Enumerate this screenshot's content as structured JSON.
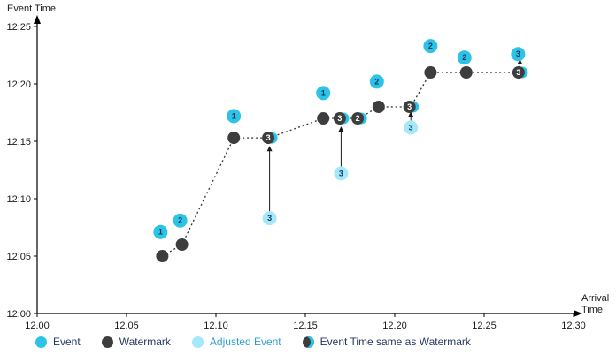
{
  "chart_data": {
    "type": "scatter",
    "ylabel": "Event Time",
    "xlabel": "Arrival Time",
    "xlabel_lines": [
      "Arrival",
      "Time"
    ],
    "xlim": [
      12.0,
      12.3
    ],
    "ylim": [
      12.0,
      12.25
    ],
    "x_ticks": [
      {
        "v": 12.0,
        "label": "12.00"
      },
      {
        "v": 12.05,
        "label": "12.05"
      },
      {
        "v": 12.1,
        "label": "12.10"
      },
      {
        "v": 12.15,
        "label": "12.15"
      },
      {
        "v": 12.2,
        "label": "12.20"
      },
      {
        "v": 12.25,
        "label": "12.25"
      },
      {
        "v": 12.3,
        "label": "12.30"
      }
    ],
    "y_ticks": [
      {
        "v": 12.0,
        "label": "12:00"
      },
      {
        "v": 12.05,
        "label": "12:05"
      },
      {
        "v": 12.1,
        "label": "12:10"
      },
      {
        "v": 12.15,
        "label": "12:15"
      },
      {
        "v": 12.2,
        "label": "12:20"
      },
      {
        "v": 12.25,
        "label": "12:25"
      }
    ],
    "watermark_line": [
      [
        12.07,
        12.05
      ],
      [
        12.081,
        12.06
      ],
      [
        12.11,
        12.153
      ],
      [
        12.13,
        12.153
      ],
      [
        12.16,
        12.17
      ],
      [
        12.17,
        12.17
      ],
      [
        12.18,
        12.17
      ],
      [
        12.191,
        12.18
      ],
      [
        12.209,
        12.18
      ],
      [
        12.22,
        12.21
      ],
      [
        12.24,
        12.21
      ],
      [
        12.27,
        12.21
      ]
    ],
    "series": [
      {
        "name": "Event",
        "marker": "event",
        "points": [
          {
            "x": 12.069,
            "y": 12.071,
            "label": "1"
          },
          {
            "x": 12.08,
            "y": 12.081,
            "label": "2"
          },
          {
            "x": 12.11,
            "y": 12.172,
            "label": "1"
          },
          {
            "x": 12.16,
            "y": 12.192,
            "label": "1"
          },
          {
            "x": 12.19,
            "y": 12.202,
            "label": "2"
          },
          {
            "x": 12.22,
            "y": 12.233,
            "label": "2"
          },
          {
            "x": 12.239,
            "y": 12.223,
            "label": "2"
          },
          {
            "x": 12.269,
            "y": 12.226,
            "label": "3"
          }
        ]
      },
      {
        "name": "Watermark",
        "marker": "watermark",
        "points": [
          {
            "x": 12.07,
            "y": 12.05
          },
          {
            "x": 12.081,
            "y": 12.06
          },
          {
            "x": 12.11,
            "y": 12.153
          },
          {
            "x": 12.16,
            "y": 12.17
          },
          {
            "x": 12.191,
            "y": 12.18
          },
          {
            "x": 12.22,
            "y": 12.21
          },
          {
            "x": 12.24,
            "y": 12.21
          }
        ]
      },
      {
        "name": "Adjusted Event",
        "marker": "adjusted",
        "points": [
          {
            "x": 12.13,
            "y": 12.083,
            "label": "3"
          },
          {
            "x": 12.17,
            "y": 12.122,
            "label": "3"
          },
          {
            "x": 12.209,
            "y": 12.162,
            "label": "3"
          }
        ]
      },
      {
        "name": "Event Time same as Watermark",
        "marker": "same",
        "points": [
          {
            "x": 12.13,
            "y": 12.153,
            "label": "3"
          },
          {
            "x": 12.17,
            "y": 12.17,
            "label": "3"
          },
          {
            "x": 12.18,
            "y": 12.17,
            "label": "2"
          },
          {
            "x": 12.209,
            "y": 12.18,
            "label": "3"
          },
          {
            "x": 12.27,
            "y": 12.21,
            "label": "3"
          }
        ]
      }
    ],
    "arrows": [
      {
        "x": 12.13,
        "from": 12.088,
        "to": 12.146
      },
      {
        "x": 12.17,
        "from": 12.127,
        "to": 12.163
      },
      {
        "x": 12.209,
        "from": 12.165,
        "to": 12.176
      },
      {
        "x": 12.27,
        "from": 12.2115,
        "to": 12.2215
      }
    ]
  },
  "legend": {
    "items": [
      {
        "label": "Event",
        "marker": "event",
        "text_role": "dark"
      },
      {
        "label": "Watermark",
        "marker": "watermark",
        "text_role": "dark"
      },
      {
        "label": "Adjusted Event",
        "marker": "adjusted",
        "text_role": "adjusted"
      },
      {
        "label": "Event Time same as Watermark",
        "marker": "same",
        "text_role": "dark"
      }
    ]
  },
  "colors": {
    "event": "#2cc3e6",
    "adjusted": "#a5e8fa",
    "watermark": "#3d3d3d",
    "axis": "#000000",
    "tick_text": "#1a1a1a",
    "axis_label_text": "#1a1a1a",
    "number_dark": "#10385c",
    "number_light": "#ffffff",
    "legend_text_dark": "#243a5e",
    "legend_text_adjusted": "#2f9fd4",
    "dotted_line": "#333333",
    "arrow": "#1a1a1a"
  }
}
